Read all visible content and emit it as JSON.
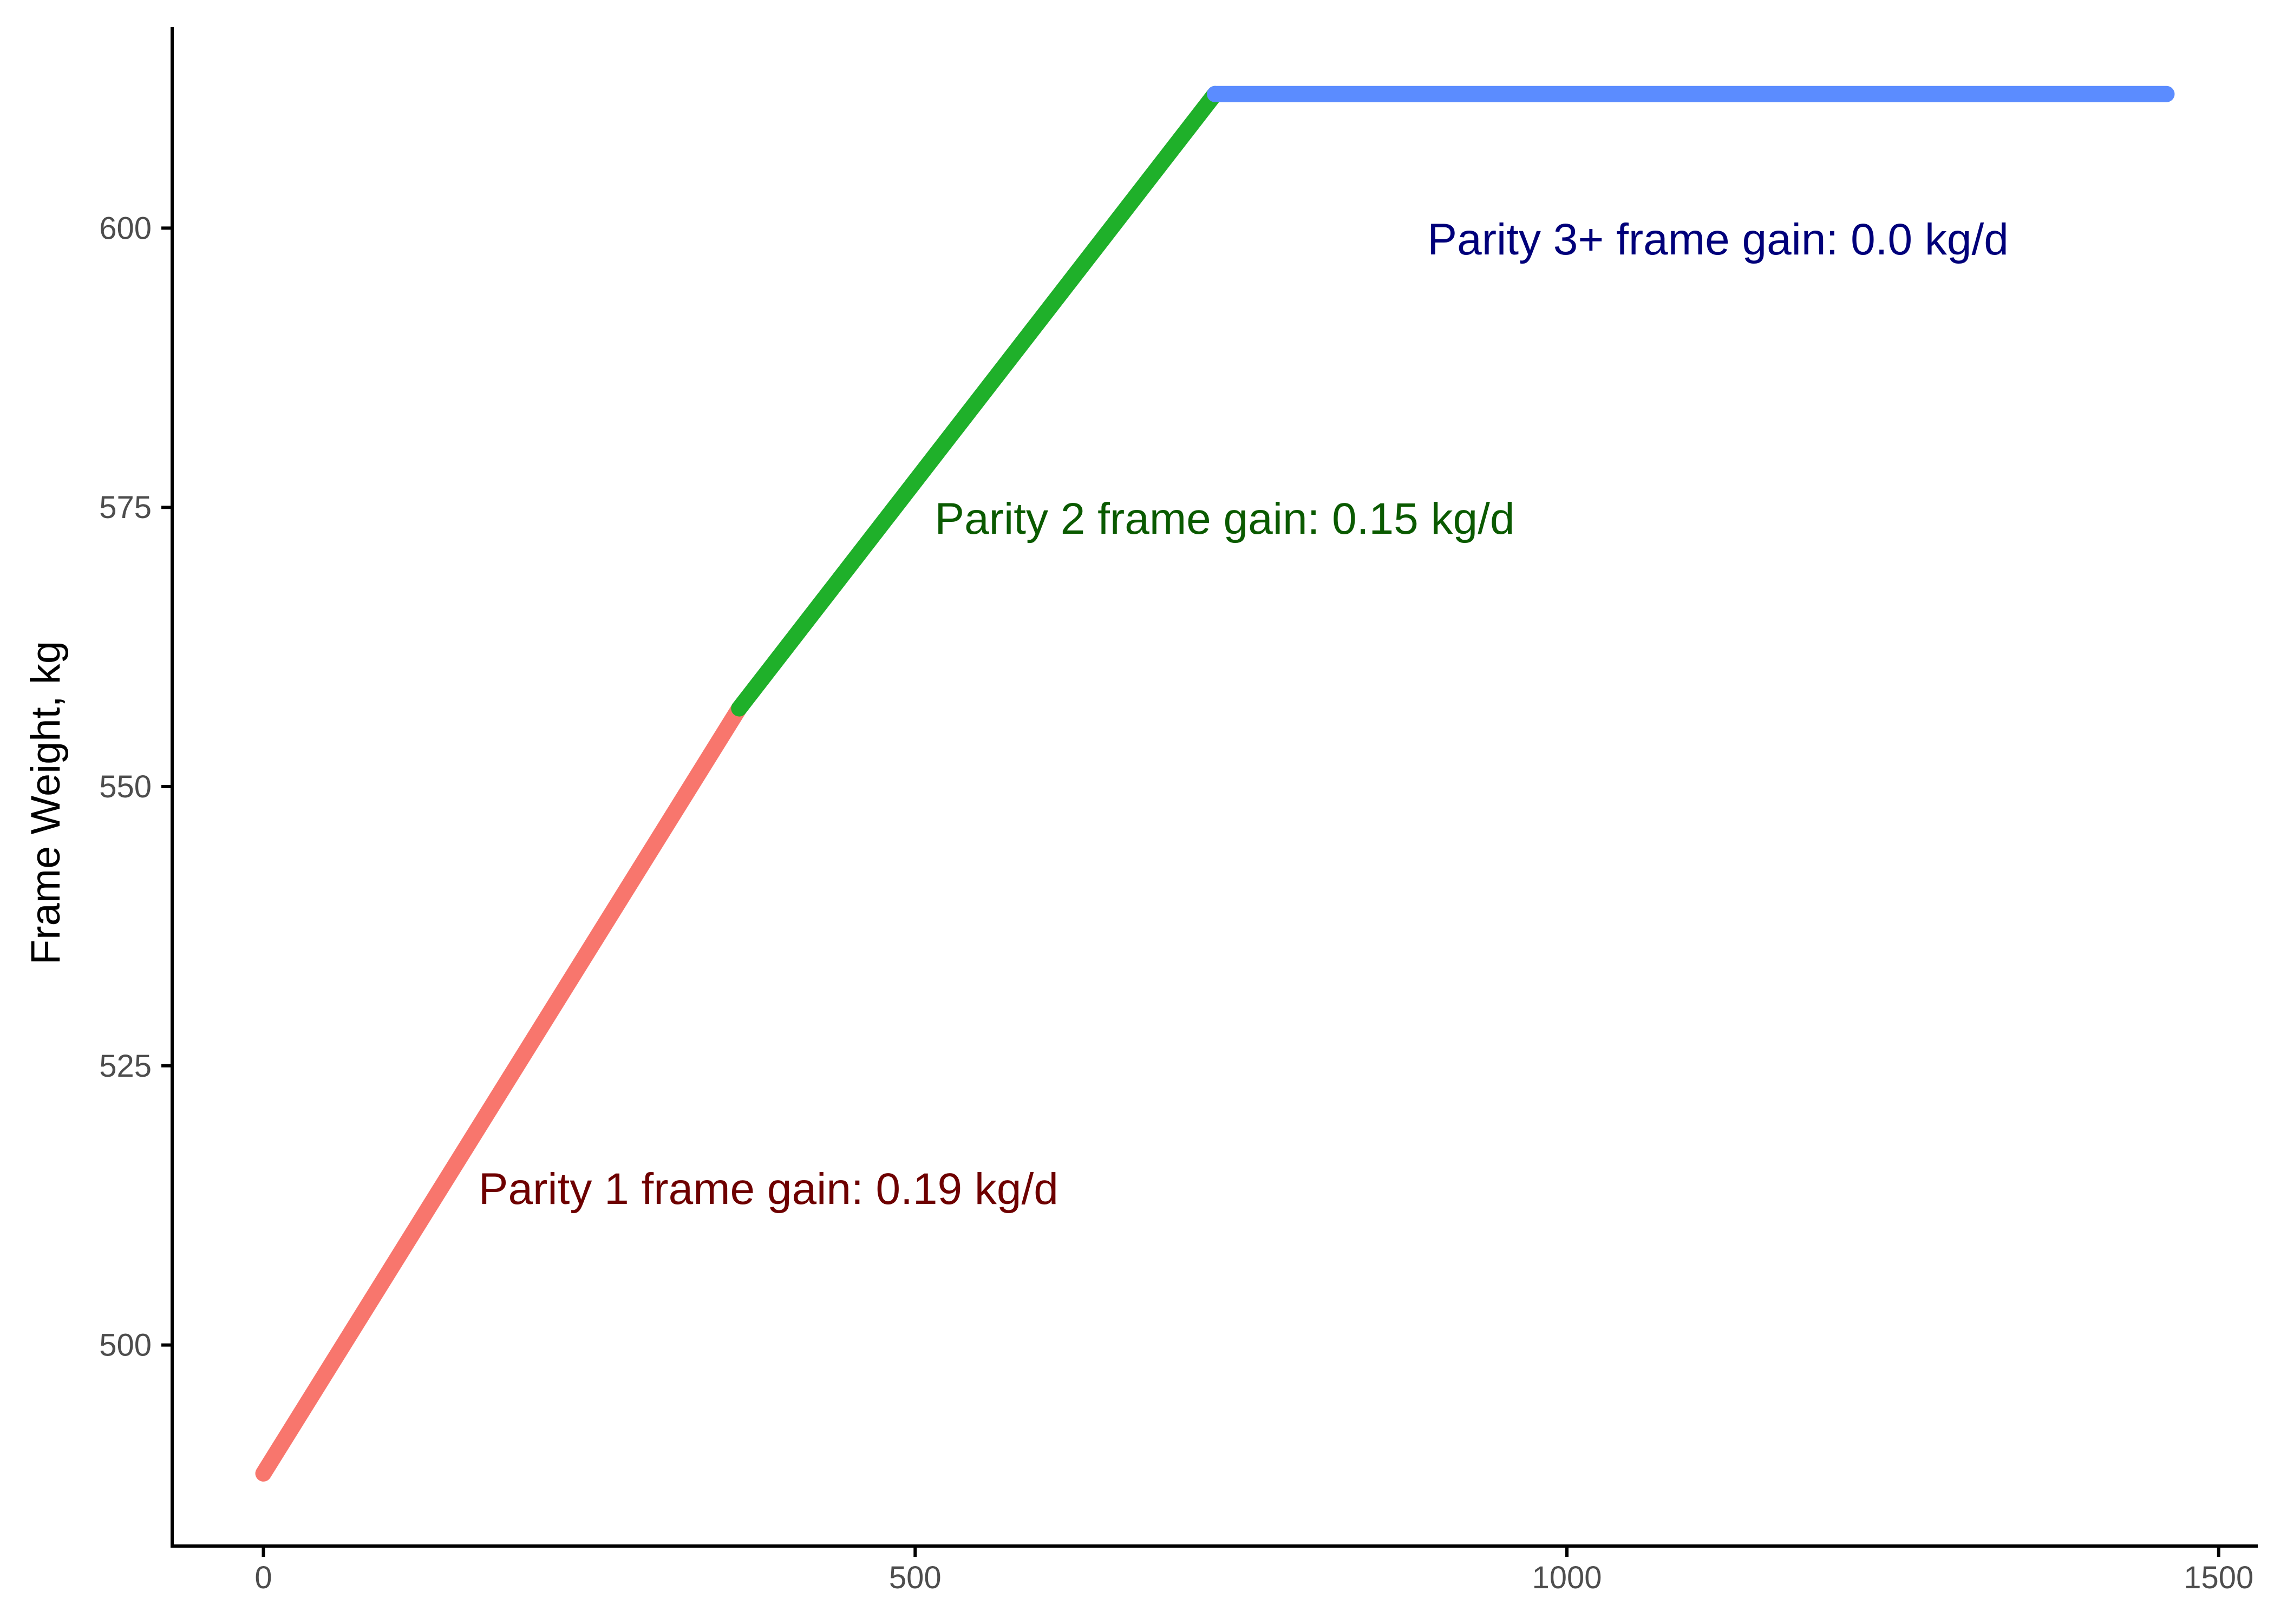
{
  "chart_data": {
    "type": "line",
    "title": "",
    "xlabel": "",
    "ylabel": "Frame Weight, kg",
    "xlim": [
      -70,
      1530
    ],
    "ylim": [
      482,
      618
    ],
    "x_ticks": [
      0,
      500,
      1000,
      1500
    ],
    "y_ticks": [
      500,
      525,
      550,
      575,
      600
    ],
    "grid": false,
    "legend": "none",
    "series": [
      {
        "color": "#F8766D",
        "x": [
          0,
          365
        ],
        "y": [
          488.5,
          557.0
        ]
      },
      {
        "color": "#1FB02A",
        "x": [
          365,
          730
        ],
        "y": [
          557.0,
          612.0
        ]
      },
      {
        "color": "#5B8CFF",
        "x": [
          730,
          1460
        ],
        "y": [
          612.0,
          612.0
        ]
      }
    ],
    "annotations": [
      {
        "text": "Parity 1 frame gain:  0.19 kg/d",
        "x": 165,
        "y": 514,
        "color": "#6E0000"
      },
      {
        "text": "Parity 2 frame gain:  0.15 kg/d",
        "x": 515,
        "y": 574,
        "color": "#0A5A00"
      },
      {
        "text": "Parity 3+ frame gain:  0.0 kg/d",
        "x": 893,
        "y": 599,
        "color": "#00007A"
      }
    ]
  }
}
